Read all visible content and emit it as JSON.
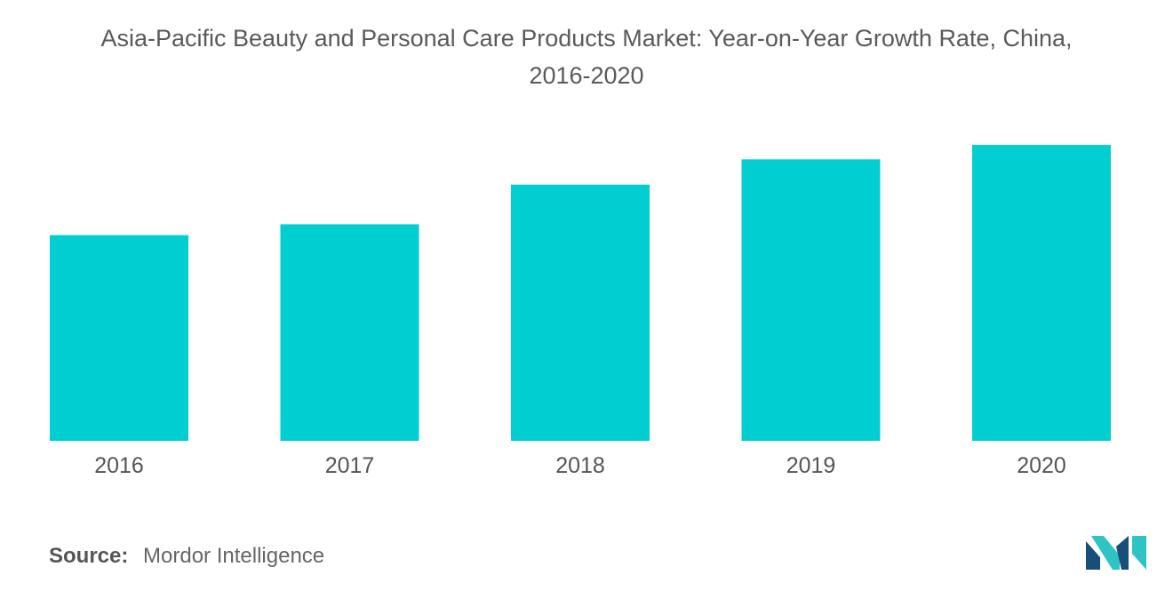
{
  "chart_data": {
    "type": "bar",
    "title_lines": [
      "Asia-Pacific Beauty and Personal Care Products Market: Year-on-Year Growth Rate, China,",
      "2016-2020"
    ],
    "categories": [
      "2016",
      "2017",
      "2018",
      "2019",
      "2020"
    ],
    "values": [
      5.7,
      6.0,
      7.1,
      7.8,
      8.2
    ],
    "ylim": [
      0,
      10
    ],
    "xlabel": "",
    "ylabel": "",
    "grid": false,
    "legend": "none",
    "bar_color": "#00CED1"
  },
  "source": {
    "label": "Source:",
    "text": "Mordor Intelligence"
  },
  "logo": {
    "icon": "mordor-intelligence-logo",
    "colors": [
      "#1A4E7A",
      "#2EC4C6"
    ]
  }
}
